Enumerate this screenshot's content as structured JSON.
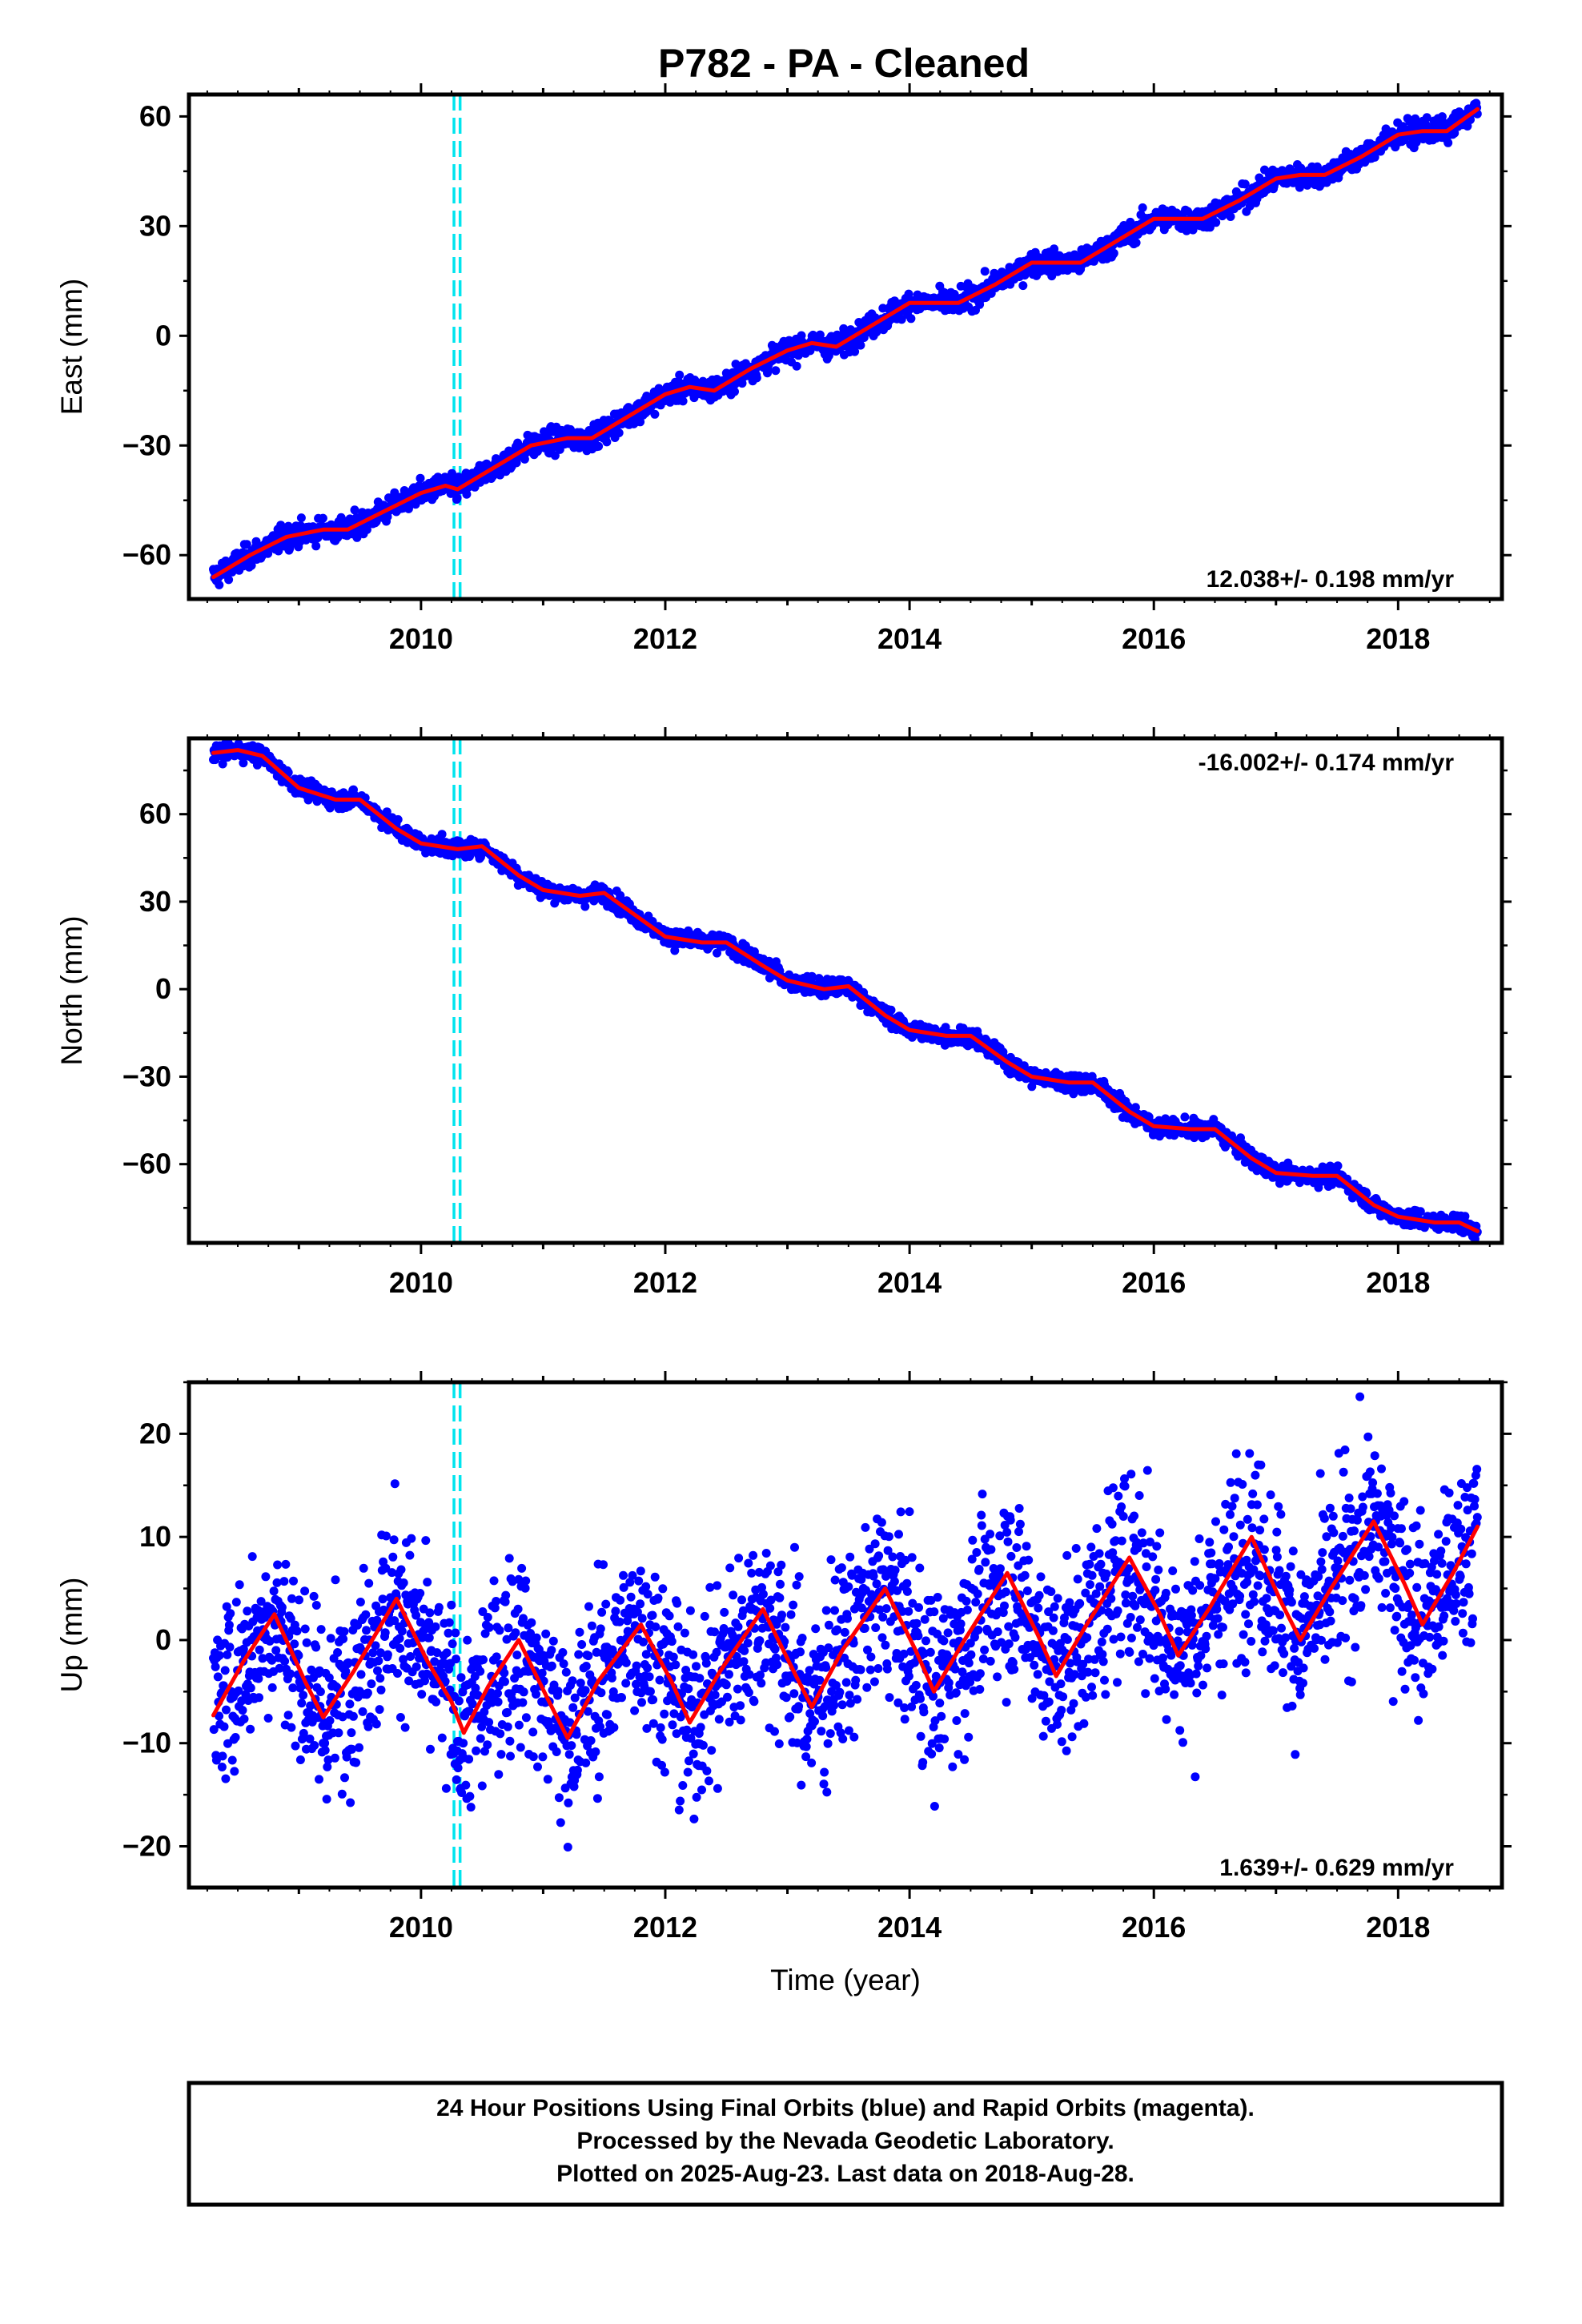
{
  "title": "P782  - PA - Cleaned",
  "xlabel": "Time (year)",
  "footer": {
    "line1": "24 Hour Positions Using Final Orbits (blue) and Rapid Orbits (magenta).",
    "line2": "Processed by the Nevada Geodetic Laboratory.",
    "line3": "Plotted on 2025-Aug-23. Last data on 2018-Aug-28."
  },
  "colors": {
    "data": "#0000ff",
    "model": "#ff0000",
    "event": "#00e5ee"
  },
  "chart_data": [
    {
      "type": "scatter",
      "ylabel": "East (mm)",
      "rate": "12.038+/- 0.198 mm/yr",
      "rate_position": "bottom-right",
      "xlim": [
        2008.1,
        2018.85
      ],
      "ylim": [
        -72,
        66
      ],
      "yticks": [
        -60,
        -30,
        0,
        30,
        60
      ],
      "xticks": [
        2010,
        2012,
        2014,
        2016,
        2018
      ],
      "events": [
        2010.27,
        2010.32
      ],
      "model": {
        "x": [
          2008.3,
          2008.6,
          2008.9,
          2009.2,
          2009.4,
          2009.7,
          2010.0,
          2010.2,
          2010.3,
          2010.6,
          2010.9,
          2011.2,
          2011.4,
          2011.7,
          2012.0,
          2012.2,
          2012.4,
          2012.7,
          2013.0,
          2013.2,
          2013.4,
          2013.7,
          2014.0,
          2014.2,
          2014.4,
          2014.7,
          2015.0,
          2015.2,
          2015.4,
          2015.7,
          2016.0,
          2016.2,
          2016.4,
          2016.7,
          2017.0,
          2017.2,
          2017.4,
          2017.7,
          2018.0,
          2018.2,
          2018.4,
          2018.65
        ],
        "y": [
          -66,
          -60,
          -55,
          -53,
          -53,
          -48,
          -43,
          -41,
          -42,
          -36,
          -30,
          -28,
          -28,
          -22,
          -16,
          -14,
          -15,
          -9,
          -4,
          -2,
          -3,
          3,
          9,
          9,
          9,
          14,
          20,
          20,
          20,
          26,
          32,
          32,
          32,
          37,
          43,
          44,
          44,
          49,
          55,
          56,
          56,
          62
        ]
      },
      "noise_mm": 1.6
    },
    {
      "type": "scatter",
      "ylabel": "North (mm)",
      "rate": "-16.002+/- 0.174 mm/yr",
      "rate_position": "top-right",
      "xlim": [
        2008.1,
        2018.85
      ],
      "ylim": [
        -87,
        86
      ],
      "yticks": [
        -60,
        -30,
        0,
        30,
        60
      ],
      "xticks": [
        2010,
        2012,
        2014,
        2016,
        2018
      ],
      "events": [
        2010.27,
        2010.32
      ],
      "model": {
        "x": [
          2008.3,
          2008.5,
          2008.7,
          2009.0,
          2009.3,
          2009.5,
          2009.8,
          2010.0,
          2010.3,
          2010.5,
          2010.8,
          2011.0,
          2011.3,
          2011.5,
          2011.8,
          2012.0,
          2012.3,
          2012.5,
          2012.8,
          2013.0,
          2013.3,
          2013.5,
          2013.8,
          2014.0,
          2014.3,
          2014.5,
          2014.8,
          2015.0,
          2015.3,
          2015.5,
          2015.8,
          2016.0,
          2016.3,
          2016.5,
          2016.8,
          2017.0,
          2017.3,
          2017.5,
          2017.8,
          2018.0,
          2018.3,
          2018.5,
          2018.65
        ],
        "y": [
          81,
          82,
          80,
          69,
          65,
          65,
          55,
          50,
          48,
          49,
          39,
          34,
          32,
          33,
          24,
          18,
          16,
          16,
          8,
          3,
          0,
          1,
          -9,
          -14,
          -16,
          -16,
          -25,
          -30,
          -32,
          -32,
          -42,
          -47,
          -48,
          -48,
          -58,
          -63,
          -64,
          -64,
          -74,
          -78,
          -80,
          -80,
          -83
        ]
      },
      "noise_mm": 1.5
    },
    {
      "type": "scatter",
      "ylabel": "Up (mm)",
      "rate": "1.639+/- 0.629 mm/yr",
      "rate_position": "bottom-right",
      "xlim": [
        2008.1,
        2018.85
      ],
      "ylim": [
        -24,
        25
      ],
      "yticks": [
        -20,
        -10,
        0,
        10,
        20
      ],
      "xticks": [
        2010,
        2012,
        2014,
        2016,
        2018
      ],
      "events": [
        2010.27,
        2010.32
      ],
      "model": {
        "x": [
          2008.3,
          2008.55,
          2008.8,
          2009.05,
          2009.2,
          2009.45,
          2009.8,
          2010.05,
          2010.25,
          2010.35,
          2010.55,
          2010.8,
          2011.05,
          2011.2,
          2011.45,
          2011.8,
          2012.05,
          2012.2,
          2012.45,
          2012.8,
          2013.05,
          2013.2,
          2013.45,
          2013.8,
          2014.05,
          2014.2,
          2014.45,
          2014.8,
          2015.05,
          2015.2,
          2015.45,
          2015.8,
          2016.05,
          2016.2,
          2016.45,
          2016.8,
          2017.05,
          2017.2,
          2017.45,
          2017.8,
          2018.05,
          2018.2,
          2018.45,
          2018.65
        ],
        "y": [
          -7.3,
          -2,
          2.5,
          -4,
          -7.5,
          -3,
          4,
          -2,
          -6,
          -9,
          -4.5,
          0,
          -6,
          -9.5,
          -4,
          1.5,
          -4,
          -8,
          -3,
          3,
          -3,
          -6.5,
          -1,
          5,
          -1,
          -5,
          0,
          6.5,
          0.5,
          -3.5,
          1.5,
          8,
          2.5,
          -1.5,
          3,
          10,
          3.5,
          0,
          5,
          11.5,
          5.5,
          1.5,
          6.5,
          11
        ]
      },
      "noise_mm": 4.5
    }
  ]
}
